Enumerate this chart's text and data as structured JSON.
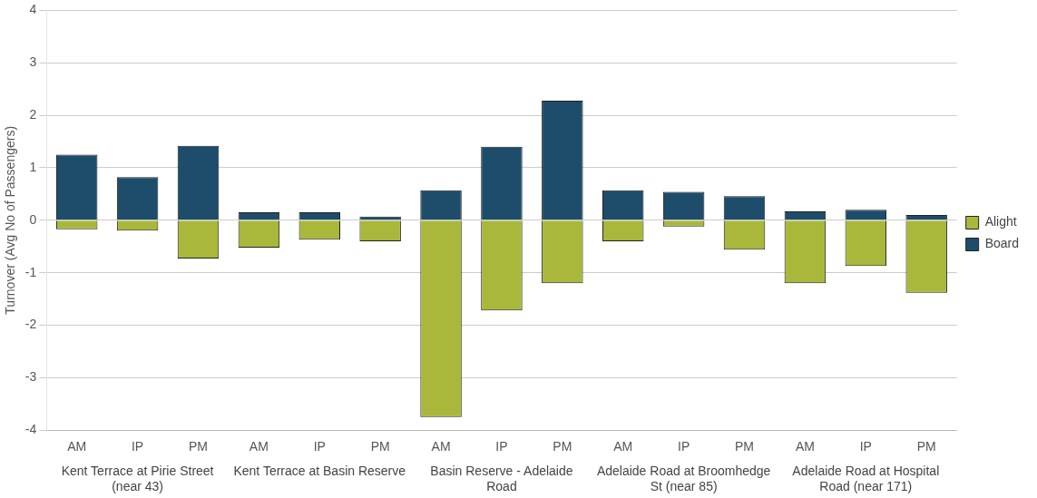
{
  "chart_data": {
    "type": "bar",
    "stacked": true,
    "ylabel": "Turnover (Avg No of Passengers)",
    "categories": [
      "AM",
      "IP",
      "PM",
      "AM",
      "IP",
      "PM",
      "AM",
      "IP",
      "PM",
      "AM",
      "IP",
      "PM",
      "AM",
      "IP",
      "PM"
    ],
    "annotations": [
      "Kent Terrace at Pirie Street (near 43)",
      "Kent Terrace at Basin Reserve",
      "Basin Reserve - Adelaide Road",
      "Adelaide Road at Broomhedge St (near 85)",
      "Adelaide Road at Hospital Road (near 171)"
    ],
    "series": [
      {
        "name": "Alight",
        "color": "#a9b83b",
        "values": [
          -0.17,
          -0.2,
          -0.73,
          -0.52,
          -0.37,
          -0.4,
          -3.75,
          -1.72,
          -1.2,
          -0.4,
          -0.12,
          -0.56,
          -1.2,
          -0.87,
          -1.38
        ]
      },
      {
        "name": "Board",
        "color": "#1d4d6a",
        "values": [
          1.25,
          0.82,
          1.42,
          0.15,
          0.15,
          0.07,
          0.57,
          1.4,
          2.28,
          0.57,
          0.54,
          0.46,
          0.17,
          0.2,
          0.1
        ]
      }
    ],
    "ylim": [
      -4,
      4
    ],
    "yticks": [
      -4,
      -3,
      -2,
      -1,
      0,
      1,
      2,
      3,
      4
    ],
    "grid": "y",
    "legend": "right"
  }
}
